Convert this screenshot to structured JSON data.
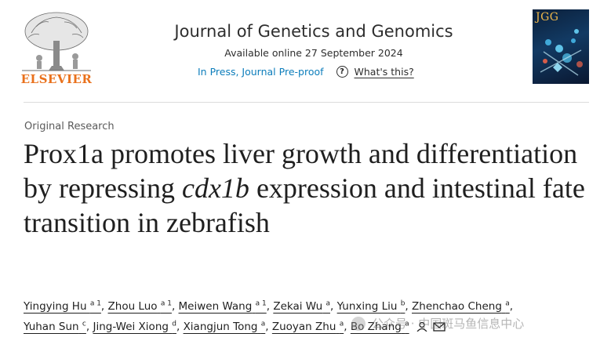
{
  "header": {
    "publisher_logo_text": "ELSEVIER",
    "journal_title": "Journal of Genetics and Genomics",
    "available_online": "Available online 27 September 2024",
    "status_link": "In Press, Journal Pre-proof",
    "help_link": "What's this?",
    "cover_title": "JGG"
  },
  "article": {
    "type": "Original Research",
    "title_part1": "Prox1a promotes liver growth and differentiation by repressing ",
    "title_italic": "cdx1b",
    "title_part2": " expression and intestinal fate transition in zebrafish"
  },
  "authors": [
    {
      "name": "Yingying Hu",
      "aff": "a 1"
    },
    {
      "name": "Zhou Luo",
      "aff": "a 1"
    },
    {
      "name": "Meiwen Wang",
      "aff": "a 1"
    },
    {
      "name": "Zekai Wu",
      "aff": "a"
    },
    {
      "name": "Yunxing Liu",
      "aff": "b"
    },
    {
      "name": "Zhenchao Cheng",
      "aff": "a"
    },
    {
      "name": "Yuhan Sun",
      "aff": "c"
    },
    {
      "name": "Jing-Wei Xiong",
      "aff": "d"
    },
    {
      "name": "Xiangjun Tong",
      "aff": "a"
    },
    {
      "name": "Zuoyan Zhu",
      "aff": "a"
    },
    {
      "name": "Bo Zhang",
      "aff": "a"
    }
  ],
  "watermark": "公众号 · 中国斑马鱼信息中心",
  "colors": {
    "link": "#0c7dbb",
    "elsevier_orange": "#e9711c"
  }
}
